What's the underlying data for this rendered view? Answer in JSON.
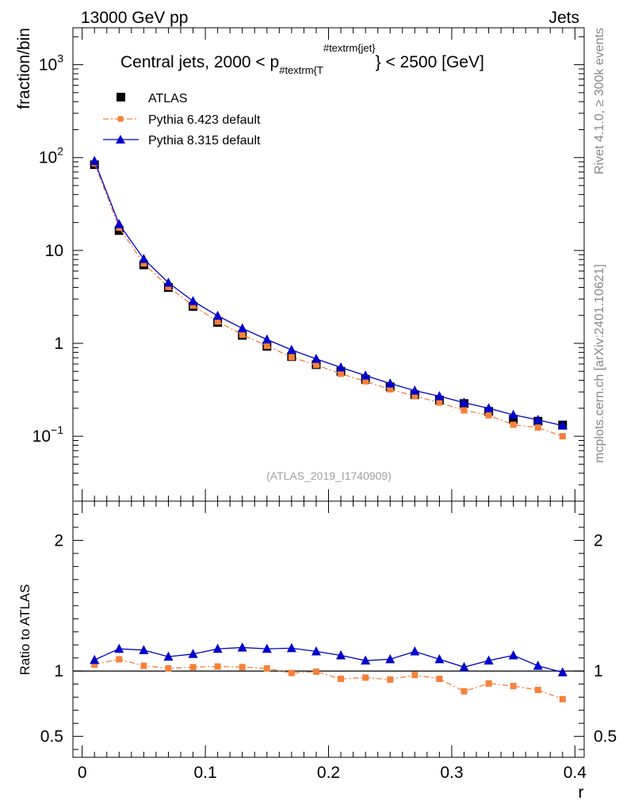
{
  "header": {
    "left": "13000 GeV pp",
    "right": "Jets"
  },
  "side_labels": {
    "rivet": "Rivet 4.1.0, ≥ 300k events",
    "mcplots": "mcplots.cern.ch [arXiv:2401.10621]"
  },
  "colors": {
    "atlas": "#000000",
    "pythia6": "#f5813a",
    "pythia8": "#0000cc",
    "side_text": "#888888",
    "watermark": "#a0a0a0"
  },
  "chart_data": [
    {
      "type": "scatter",
      "panel": "main",
      "title_main": "Central jets, 2000 < p",
      "title_sub": "#textrm{T",
      "title_sup": "#textrm{jet}",
      "title_tail": "} < 2500 [GeV]",
      "ylabel": "fraction/bin",
      "yscale": "log",
      "ylim": [
        0.02,
        2500
      ],
      "xlim": [
        -0.0075,
        0.4075
      ],
      "grid": false,
      "legend_position": "top-left",
      "watermark": "(ATLAS_2019_I1740909)",
      "y_ticks": [
        {
          "value": 1000,
          "base": "10",
          "exp": "3",
          "label": ""
        },
        {
          "value": 100,
          "base": "10",
          "exp": "2",
          "label": ""
        },
        {
          "value": 10,
          "base": "",
          "exp": "",
          "label": "10"
        },
        {
          "value": 1,
          "base": "",
          "exp": "",
          "label": "1"
        },
        {
          "value": 0.1,
          "base": "10",
          "exp": "−1",
          "label": ""
        }
      ],
      "x": [
        0.01,
        0.03,
        0.05,
        0.07,
        0.09,
        0.11,
        0.13,
        0.15,
        0.17,
        0.19,
        0.21,
        0.23,
        0.25,
        0.27,
        0.29,
        0.31,
        0.33,
        0.35,
        0.37,
        0.39
      ],
      "series": [
        {
          "name": "ATLAS",
          "marker": "square",
          "line": "none",
          "values": [
            84,
            16.4,
            7.0,
            4.0,
            2.5,
            1.68,
            1.22,
            0.93,
            0.72,
            0.59,
            0.5,
            0.41,
            0.34,
            0.28,
            0.245,
            0.225,
            0.185,
            0.152,
            0.145,
            0.132
          ]
        },
        {
          "name": "Pythia 6.423 default",
          "marker": "square-small",
          "line": "dash-dot",
          "values": [
            87,
            17.6,
            7.25,
            4.05,
            2.55,
            1.72,
            1.24,
            0.94,
            0.71,
            0.585,
            0.47,
            0.39,
            0.32,
            0.272,
            0.23,
            0.19,
            0.168,
            0.133,
            0.124,
            0.1
          ]
        },
        {
          "name": "Pythia 8.315 default",
          "marker": "triangle",
          "line": "solid",
          "values": [
            92,
            19.2,
            8.1,
            4.5,
            2.85,
            1.98,
            1.45,
            1.1,
            0.85,
            0.68,
            0.55,
            0.45,
            0.37,
            0.31,
            0.27,
            0.23,
            0.2,
            0.17,
            0.15,
            0.13
          ]
        }
      ]
    },
    {
      "type": "line",
      "panel": "ratio",
      "ylabel": "Ratio to ATLAS",
      "xlabel": "r",
      "ylim": [
        0.34,
        2.3
      ],
      "xlim": [
        -0.0075,
        0.4075
      ],
      "x_ticks": [
        0,
        0.1,
        0.2,
        0.3,
        0.4
      ],
      "x_tick_labels": [
        "0",
        "0.1",
        "0.2",
        "0.3",
        "0.4"
      ],
      "y_ticks": [
        0.5,
        1,
        2
      ],
      "y_tick_labels": [
        "0.5",
        "1",
        "2"
      ],
      "reference_line": 1,
      "x": [
        0.01,
        0.03,
        0.05,
        0.07,
        0.09,
        0.11,
        0.13,
        0.15,
        0.17,
        0.19,
        0.21,
        0.23,
        0.25,
        0.27,
        0.29,
        0.31,
        0.33,
        0.35,
        0.37,
        0.39
      ],
      "series": [
        {
          "name": "Pythia 6.423 default",
          "marker": "square-small",
          "line": "dash-dot",
          "values": [
            1.05,
            1.09,
            1.04,
            1.02,
            1.03,
            1.035,
            1.03,
            1.02,
            0.985,
            0.995,
            0.94,
            0.95,
            0.935,
            0.97,
            0.94,
            0.845,
            0.905,
            0.885,
            0.855,
            0.785
          ]
        },
        {
          "name": "Pythia 8.315 default",
          "marker": "triangle",
          "line": "solid",
          "values": [
            1.085,
            1.17,
            1.16,
            1.11,
            1.13,
            1.17,
            1.18,
            1.17,
            1.175,
            1.15,
            1.12,
            1.08,
            1.09,
            1.15,
            1.09,
            1.03,
            1.08,
            1.12,
            1.04,
            0.99
          ]
        }
      ]
    }
  ]
}
